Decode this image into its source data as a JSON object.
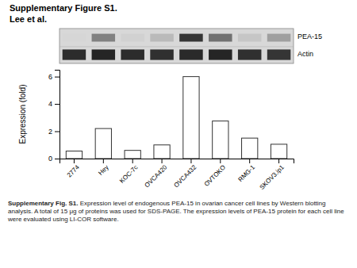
{
  "chart_data": {
    "type": "bar",
    "title": "Supplementary Figure S1.",
    "subtitle": "Lee et al.",
    "annotations": [
      "Supplementary Fig. S1.",
      " Expression level of endogenous PEA-15 in ovarian cancer cell lines by Western blotting analysis. A total of 15 μg of proteins was used for SDS-PAGE. The expression levels of PEA-15 protein for each cell line were evaluated using LI-COR software."
    ],
    "categories": [
      "2774",
      "Hey",
      "KOC-7c",
      "OVCA420",
      "OVCA432",
      "OVTOKO",
      "RMG-1",
      "SKOV3.ip1"
    ],
    "values": [
      0.55,
      2.2,
      0.6,
      1.0,
      6.0,
      2.75,
      1.5,
      1.05
    ],
    "color": "#ffffff",
    "ylabel": "Expression (fold)",
    "ylim": [
      0,
      6.5
    ],
    "yticks": [
      0,
      2,
      4,
      6
    ],
    "grid": false,
    "blot": [
      {
        "name": "PEA-15",
        "values": [
          0.18,
          0.55,
          0.2,
          0.3,
          0.88,
          0.62,
          0.25,
          0.42
        ]
      },
      {
        "name": "Actin",
        "values": [
          0.92,
          0.95,
          0.92,
          0.9,
          0.93,
          0.95,
          0.9,
          0.88
        ]
      }
    ]
  }
}
